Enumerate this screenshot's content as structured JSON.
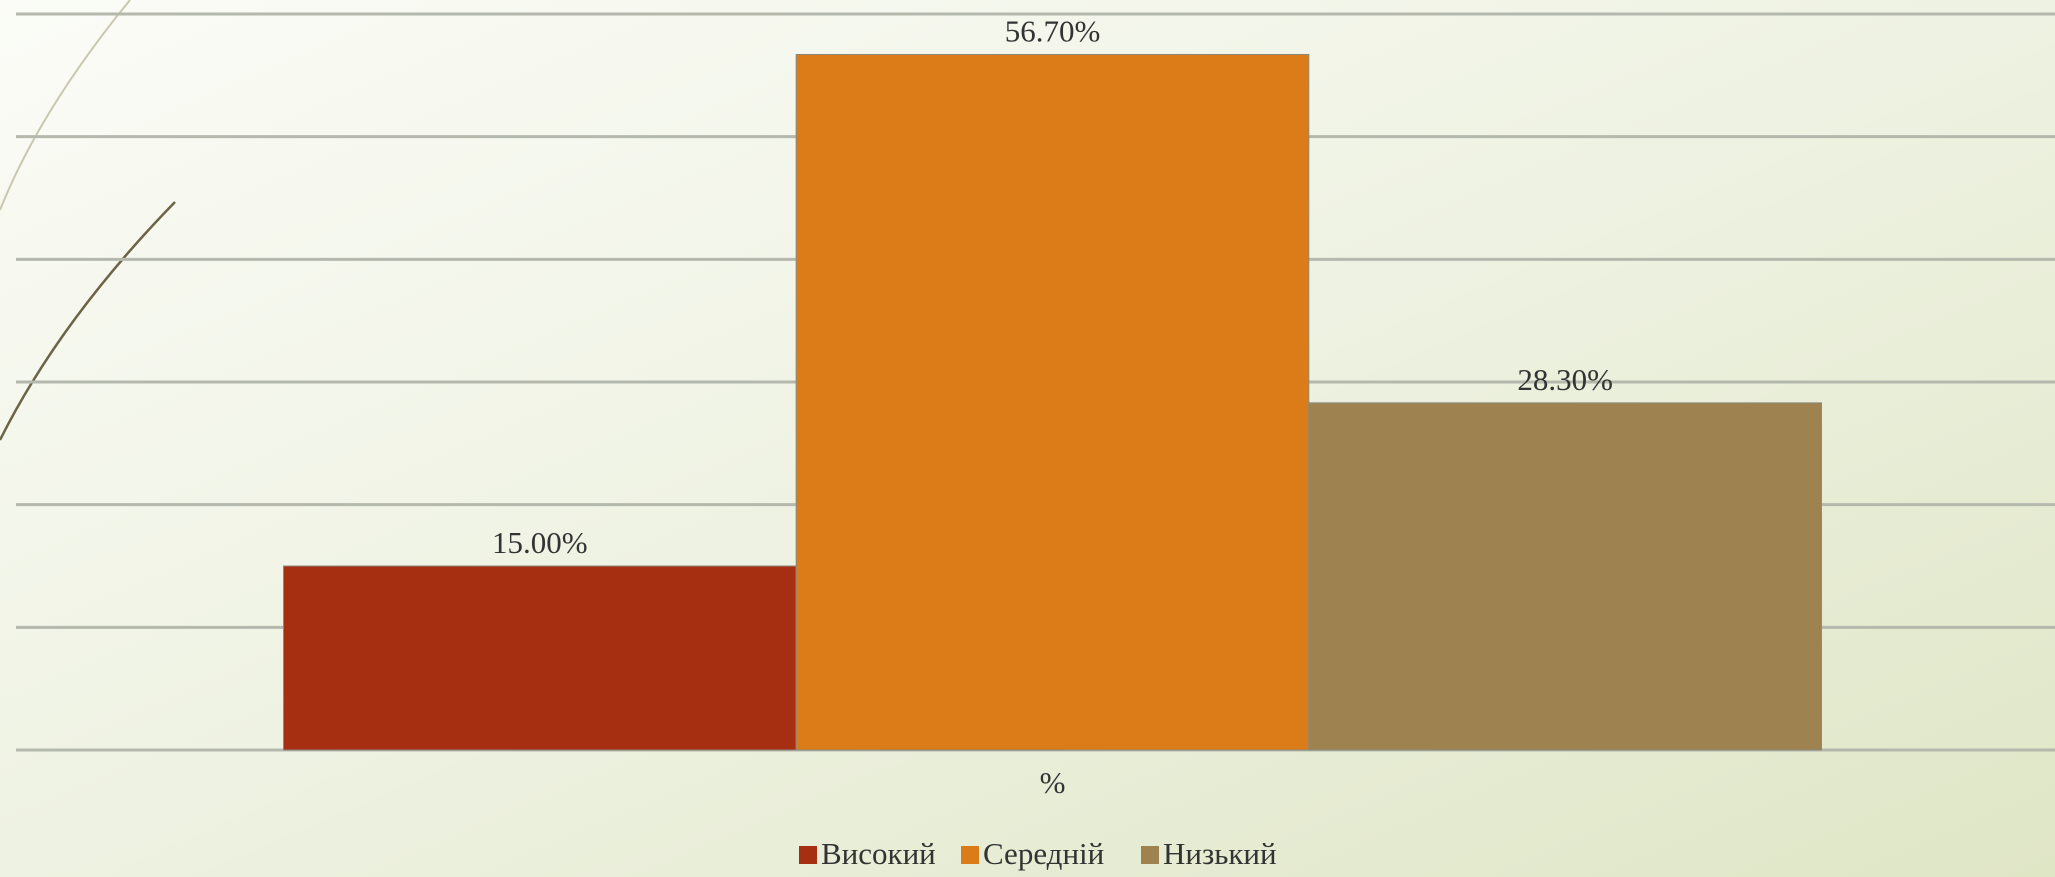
{
  "chart_data": {
    "type": "bar",
    "categories": [
      "%"
    ],
    "series": [
      {
        "name": "Високий",
        "color": "#a52f10",
        "values": [
          15.0
        ],
        "value_labels": [
          "15.00%"
        ]
      },
      {
        "name": "Середній",
        "color": "#dc7c19",
        "values": [
          56.7
        ],
        "value_labels": [
          "56.70%"
        ]
      },
      {
        "name": "Низький",
        "color": "#9e8350",
        "values": [
          28.3
        ],
        "value_labels": [
          "28.30%"
        ]
      }
    ],
    "ylim": [
      0,
      60
    ],
    "yticks": [
      0,
      10,
      20,
      30,
      40,
      50,
      60
    ],
    "grid": true,
    "legend": "bottom"
  }
}
